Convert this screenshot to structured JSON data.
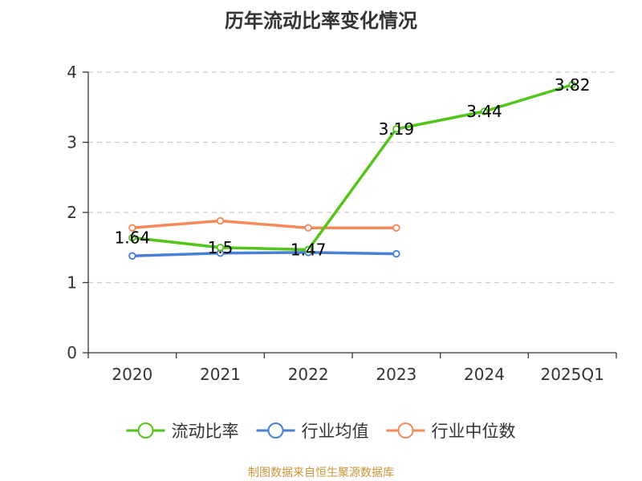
{
  "chart_data": {
    "type": "line",
    "title": "历年流动比率变化情况",
    "xlabel": "",
    "ylabel": "",
    "categories": [
      "2020",
      "2021",
      "2022",
      "2023",
      "2024",
      "2025Q1"
    ],
    "ylim": [
      0,
      4
    ],
    "yticks": [
      0,
      1,
      2,
      3,
      4
    ],
    "grid": "horizontal-dashed",
    "legend_position": "bottom",
    "series": [
      {
        "name": "流动比率",
        "color": "#52c41a",
        "values": [
          1.64,
          1.5,
          1.47,
          3.19,
          3.44,
          3.82
        ],
        "data_labels": [
          "1.64",
          "1.5",
          "1.47",
          "3.19",
          "3.44",
          "3.82"
        ]
      },
      {
        "name": "行业均值",
        "color": "#4a7fd6",
        "values": [
          1.38,
          1.42,
          1.43,
          1.41,
          null,
          null
        ]
      },
      {
        "name": "行业中位数",
        "color": "#f5895a",
        "values": [
          1.78,
          1.88,
          1.78,
          1.78,
          null,
          null
        ]
      }
    ]
  },
  "footer": {
    "source": "制图数据来自恒生聚源数据库"
  }
}
